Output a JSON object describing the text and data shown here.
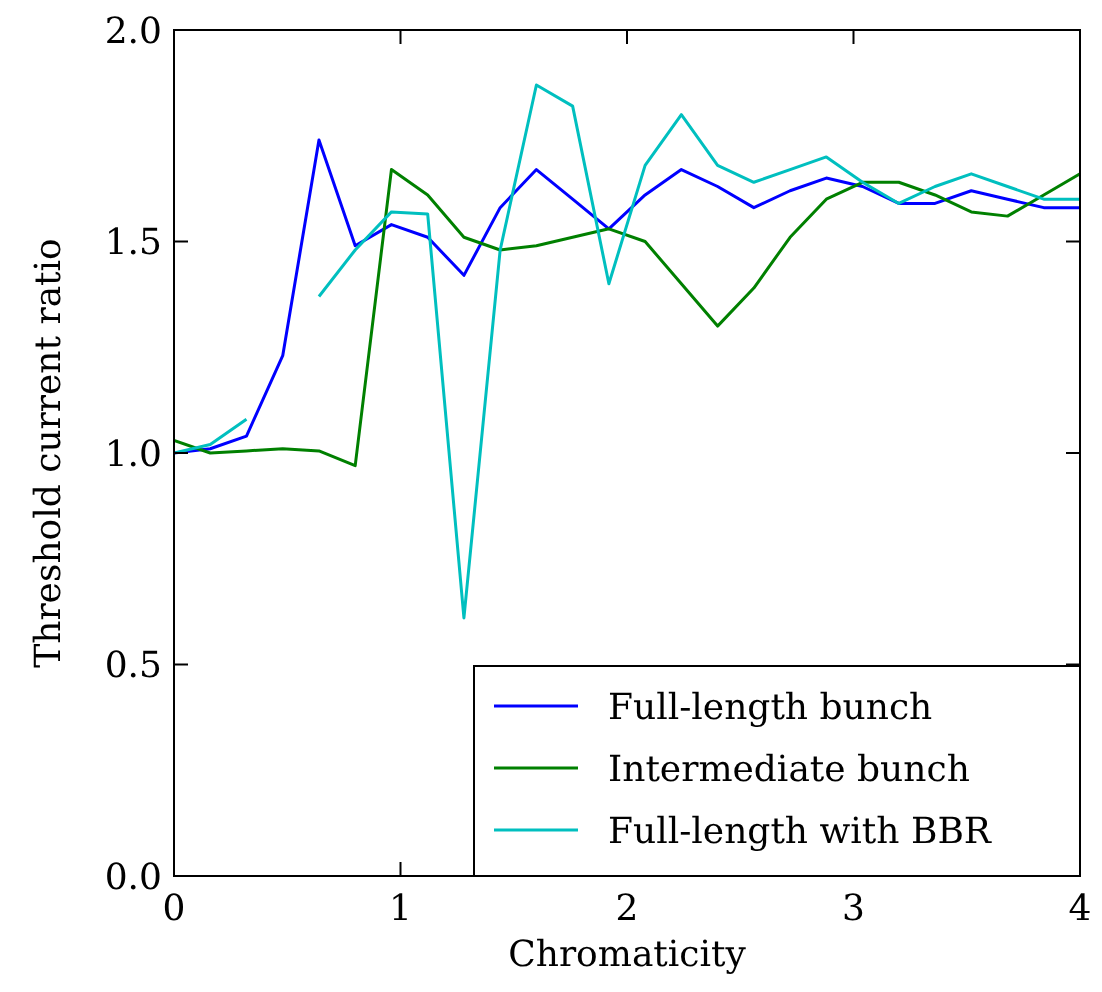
{
  "chart_data": {
    "type": "line",
    "xlabel": "Chromaticity",
    "ylabel": "Threshold current ratio",
    "x": [
      0,
      0.16,
      0.32,
      0.48,
      0.64,
      0.8,
      0.96,
      1.12,
      1.28,
      1.44,
      1.6,
      1.76,
      1.92,
      2.08,
      2.24,
      2.4,
      2.56,
      2.72,
      2.88,
      3.04,
      3.2,
      3.36,
      3.52,
      3.68,
      3.84,
      4.0
    ],
    "series": [
      {
        "name": "Full-length bunch",
        "color": "#0000ff",
        "values": [
          1.0,
          1.01,
          1.04,
          1.23,
          1.74,
          1.49,
          1.54,
          1.51,
          1.42,
          1.58,
          1.67,
          1.6,
          1.53,
          1.61,
          1.67,
          1.63,
          1.58,
          1.62,
          1.65,
          1.63,
          1.59,
          1.59,
          1.62,
          1.6,
          1.58,
          1.58
        ]
      },
      {
        "name": "Intermediate bunch",
        "color": "#008000",
        "values": [
          1.03,
          1.0,
          1.005,
          1.01,
          1.005,
          0.97,
          1.67,
          1.61,
          1.51,
          1.48,
          1.49,
          1.51,
          1.53,
          1.5,
          1.4,
          1.3,
          1.39,
          1.51,
          1.6,
          1.64,
          1.64,
          1.61,
          1.57,
          1.56,
          1.61,
          1.66
        ]
      },
      {
        "name": "Full-length with BBR",
        "color": "#00bfbf",
        "values": [
          1.0,
          1.02,
          1.08,
          null,
          1.37,
          1.48,
          1.57,
          1.565,
          0.61,
          1.48,
          1.87,
          1.82,
          1.4,
          1.68,
          1.8,
          1.68,
          1.64,
          1.67,
          1.7,
          1.64,
          1.59,
          1.63,
          1.66,
          1.63,
          1.6,
          1.6
        ]
      }
    ],
    "xlim": [
      0,
      4
    ],
    "xticks": [
      0,
      1,
      2,
      3,
      4
    ],
    "ylim": [
      0,
      2
    ],
    "yticks": [
      {
        "value": 0,
        "label": "0.0"
      },
      {
        "value": 0.5,
        "label": "0.5"
      },
      {
        "value": 1,
        "label": "1.0"
      },
      {
        "value": 1.5,
        "label": "1.5"
      },
      {
        "value": 2,
        "label": "2.0"
      }
    ],
    "grid": false,
    "legend": "bottom right",
    "line_style": "solid",
    "marker": "none"
  }
}
